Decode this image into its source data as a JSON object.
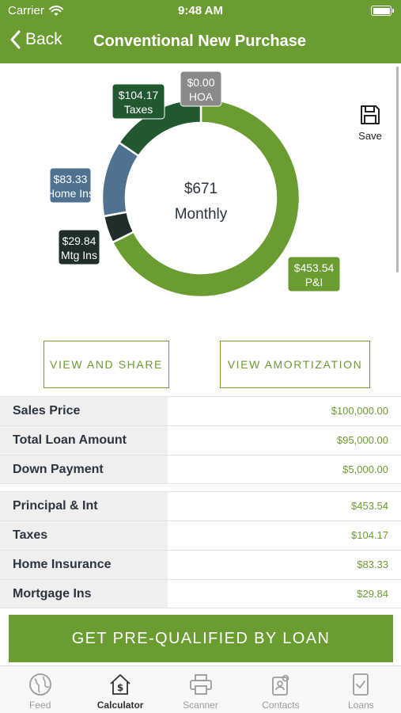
{
  "status_bar": {
    "carrier": "Carrier",
    "time": "9:48 AM"
  },
  "nav": {
    "back_label": "Back",
    "title": "Conventional New Purchase"
  },
  "save_label": "Save",
  "chart_data": {
    "type": "pie",
    "center_value": "$671",
    "center_label": "Monthly",
    "slices": [
      {
        "name": "P&I",
        "value": 453.54,
        "label": "$453.54",
        "color": "#6b9c32"
      },
      {
        "name": "Mtg Ins",
        "value": 29.84,
        "label": "$29.84",
        "color": "#1f2d2b"
      },
      {
        "name": "Home Ins",
        "value": 83.33,
        "label": "$83.33",
        "color": "#4f7290"
      },
      {
        "name": "Taxes",
        "value": 104.17,
        "label": "$104.17",
        "color": "#225830"
      },
      {
        "name": "HOA",
        "value": 0.0,
        "label": "$0.00",
        "color": "#8a8a8a"
      }
    ]
  },
  "actions": {
    "share": "VIEW AND SHARE",
    "amortization": "VIEW AMORTIZATION"
  },
  "loan_rows": [
    {
      "label": "Sales Price",
      "value": "$100,000.00"
    },
    {
      "label": "Total Loan Amount",
      "value": "$95,000.00"
    },
    {
      "label": "Down Payment",
      "value": "$5,000.00"
    }
  ],
  "payment_rows": [
    {
      "label": "Principal & Int",
      "value": "$453.54"
    },
    {
      "label": "Taxes",
      "value": "$104.17"
    },
    {
      "label": "Home Insurance",
      "value": "$83.33"
    },
    {
      "label": "Mortgage Ins",
      "value": "$29.84"
    }
  ],
  "cta_label": "GET PRE-QUALIFIED BY LOAN",
  "tabs": [
    {
      "label": "Feed",
      "icon": "globe-icon"
    },
    {
      "label": "Calculator",
      "icon": "house-dollar-icon",
      "active": true
    },
    {
      "label": "Scanner",
      "icon": "printer-icon"
    },
    {
      "label": "Contacts",
      "icon": "contacts-icon"
    },
    {
      "label": "Loans",
      "icon": "document-check-icon"
    }
  ],
  "colors": {
    "brand_green": "#6b9c32"
  }
}
